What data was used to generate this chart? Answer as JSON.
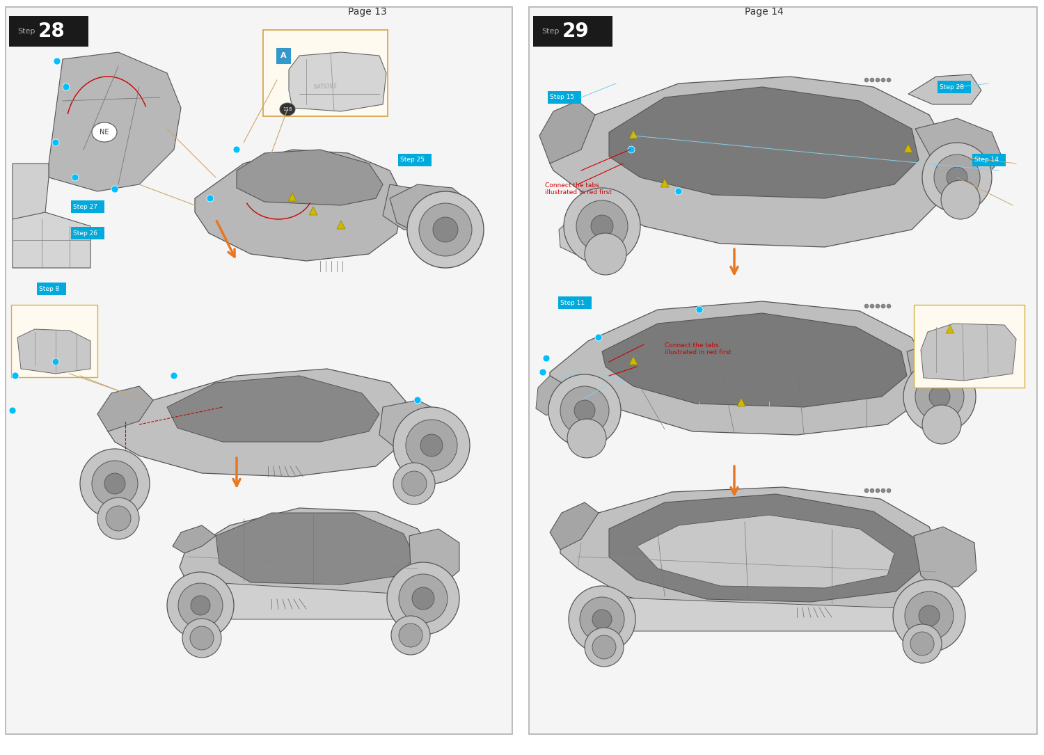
{
  "bg_color": "#ffffff",
  "page_bg": "#f5f5f5",
  "border_color": "#b0b0b0",
  "page13_title": "Page 13",
  "page14_title": "Page 14",
  "step28_label": "Step 28",
  "step29_label": "Step 29",
  "step_bg": "#1a1a1a",
  "step_text_color": "#ffffff",
  "step_num_color": "#ffffff",
  "cyan_dot": "#00bfff",
  "orange_arrow": "#e87722",
  "red_line": "#cc0000",
  "tan_line": "#c8a870",
  "light_blue_line": "#87ceeb",
  "yellow_triangle": "#d4b800",
  "label_bg": "#00aadd",
  "label_text": "#ffffff",
  "outline_color": "#555555",
  "dark_gray": "#888888",
  "mid_gray": "#aaaaaa",
  "light_gray": "#cccccc",
  "fill_gray": "#b8b8b8",
  "dark_fill": "#888888",
  "note_border": "#d4a040",
  "note_bg": "#fffaf0"
}
